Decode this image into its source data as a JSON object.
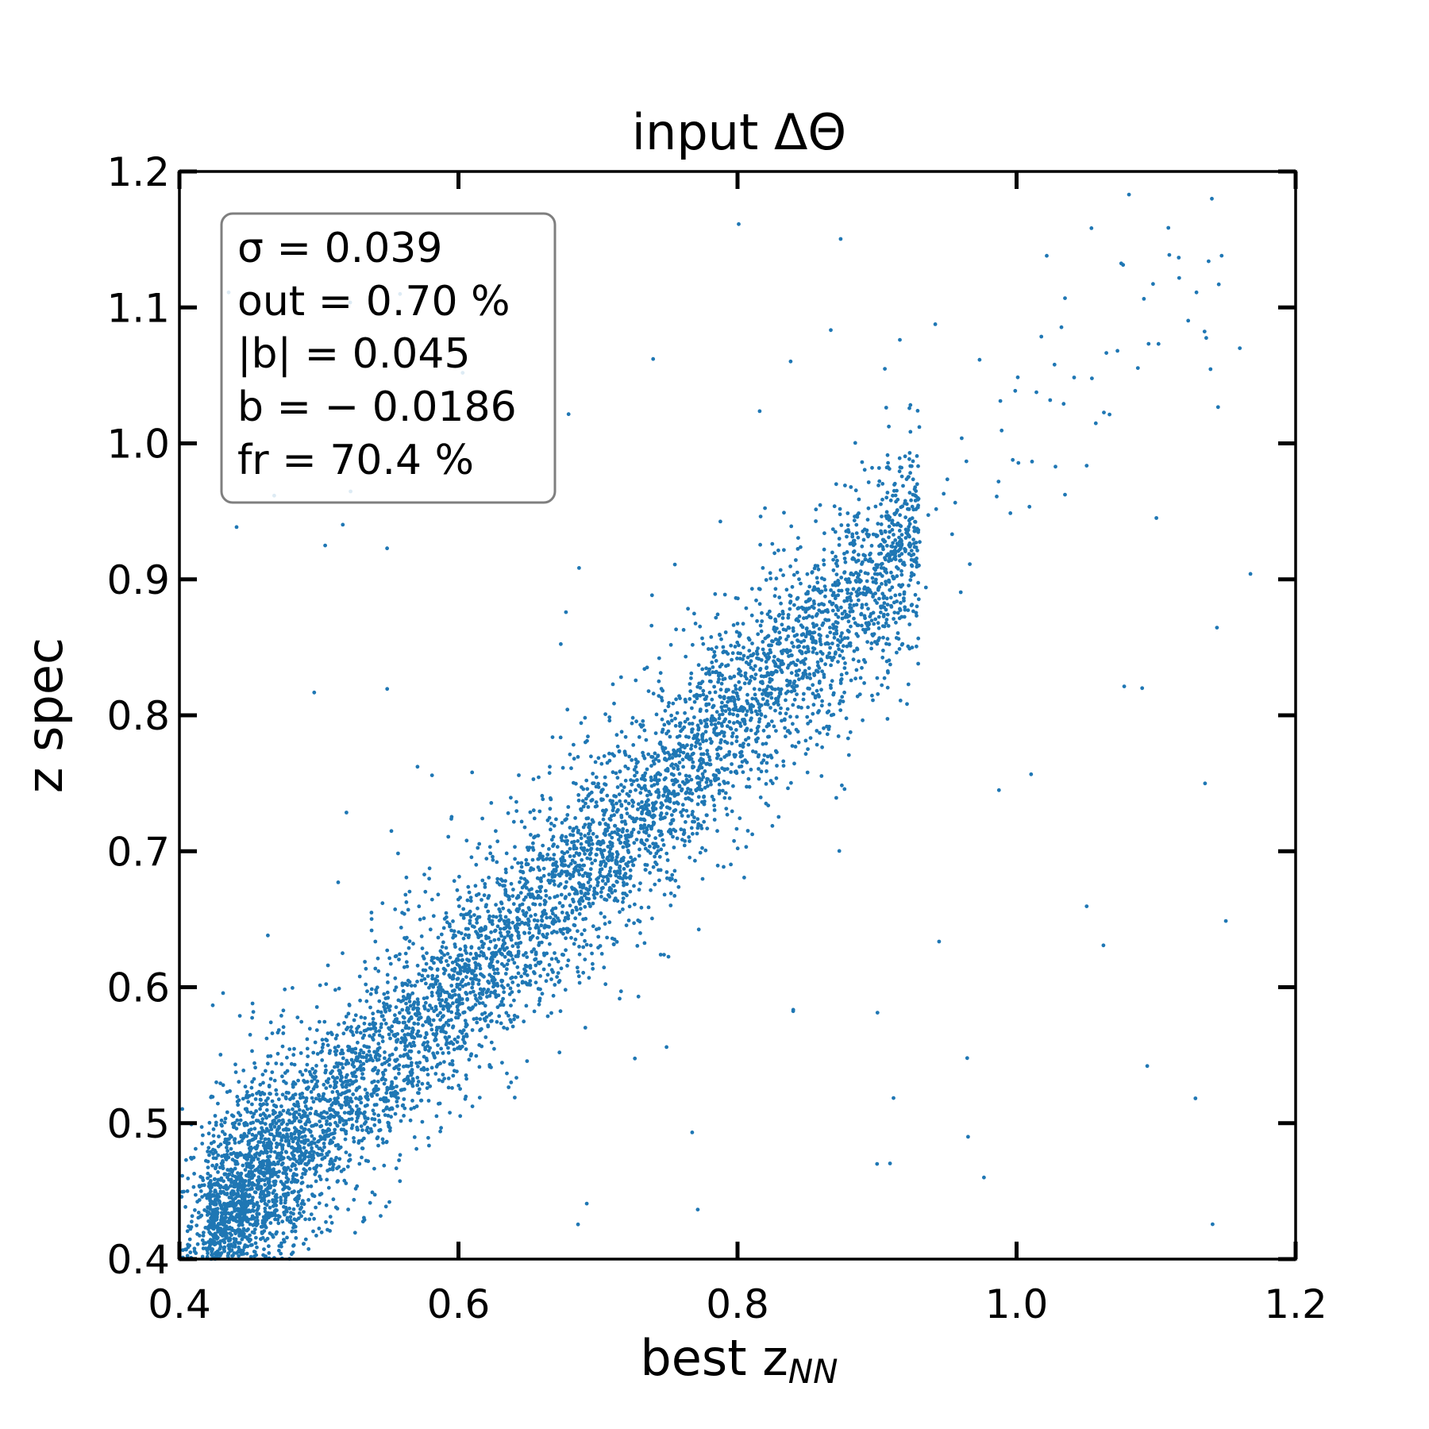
{
  "chart_data": {
    "type": "scatter",
    "title": "input ΔΘ",
    "xlabel": "best z",
    "xlabel_subscript": "NN",
    "ylabel": "z spec",
    "xlim": [
      0.4,
      1.2
    ],
    "ylim": [
      0.4,
      1.2
    ],
    "xticks": [
      "0.4",
      "0.6",
      "0.8",
      "1.0",
      "1.2"
    ],
    "yticks": [
      "0.4",
      "0.5",
      "0.6",
      "0.7",
      "0.8",
      "0.9",
      "1.0",
      "1.1",
      "1.2"
    ],
    "point_color": "#1f77b4",
    "grid": false,
    "stats_box": {
      "sigma": "σ = 0.039",
      "out": "out = 0.70 %",
      "abs_b": "|b| = 0.045",
      "b": "b = − 0.0186",
      "fr": "fr = 70.4 %"
    },
    "points_generation": {
      "count": 6500,
      "relation": "z_spec ≈ best z_NN",
      "core_scatter": 0.039,
      "x_range": [
        0.42,
        0.93
      ],
      "outlier_fraction": 0.007
    },
    "sample_points": [
      [
        0.46,
        0.47
      ],
      [
        0.5,
        0.52
      ],
      [
        0.55,
        0.57
      ],
      [
        0.6,
        0.62
      ],
      [
        0.65,
        0.65
      ],
      [
        0.68,
        0.68
      ],
      [
        0.71,
        0.71
      ],
      [
        0.75,
        0.76
      ],
      [
        0.8,
        0.8
      ],
      [
        0.85,
        0.86
      ],
      [
        0.89,
        0.89
      ],
      [
        1.14,
        1.18
      ],
      [
        1.16,
        1.07
      ],
      [
        0.9,
        0.47
      ],
      [
        1.09,
        0.82
      ]
    ]
  }
}
